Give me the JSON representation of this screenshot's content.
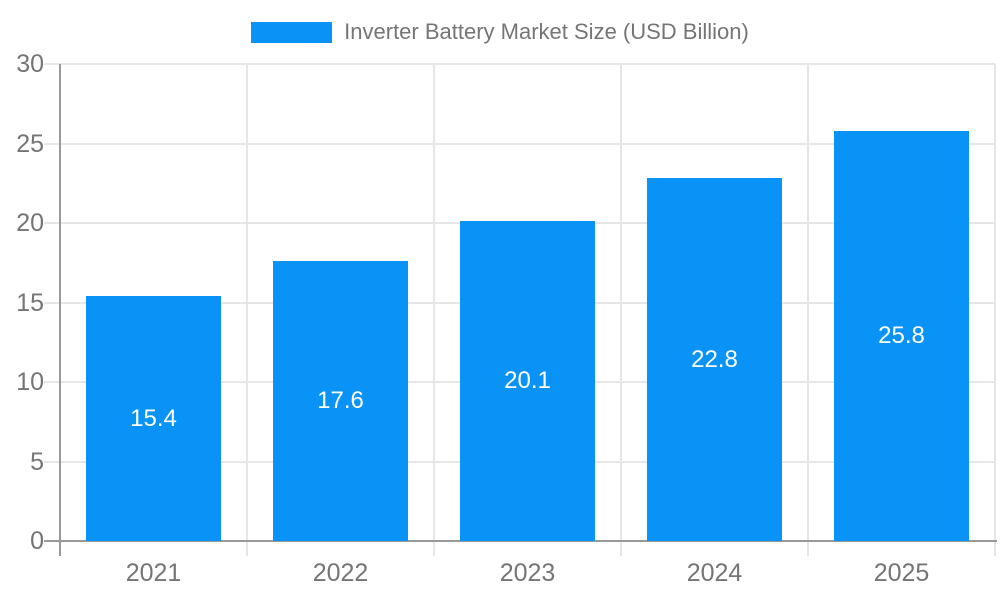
{
  "chart_data": {
    "type": "bar",
    "title": "Inverter Battery Market Size (USD Billion)",
    "legend": {
      "label": "Inverter Battery Market Size (USD Billion)",
      "position": "top"
    },
    "categories": [
      "2021",
      "2022",
      "2023",
      "2024",
      "2025"
    ],
    "series": [
      {
        "name": "Inverter Battery Market Size (USD Billion)",
        "values": [
          15.4,
          17.6,
          20.1,
          22.8,
          25.8
        ],
        "value_labels": [
          "15.4",
          "17.6",
          "20.1",
          "22.8",
          "25.8"
        ]
      }
    ],
    "xlabel": "",
    "ylabel": "",
    "ylim": [
      0,
      30
    ],
    "yticks": [
      0,
      5,
      10,
      15,
      20,
      25,
      30
    ],
    "grid": true,
    "colors": {
      "bar": "#0a93f7",
      "grid": "#e6e6e6",
      "axis": "#999999",
      "tick_label": "#757575",
      "legend_text": "#757575",
      "value_label": "#ffffff",
      "background": "#ffffff"
    }
  }
}
